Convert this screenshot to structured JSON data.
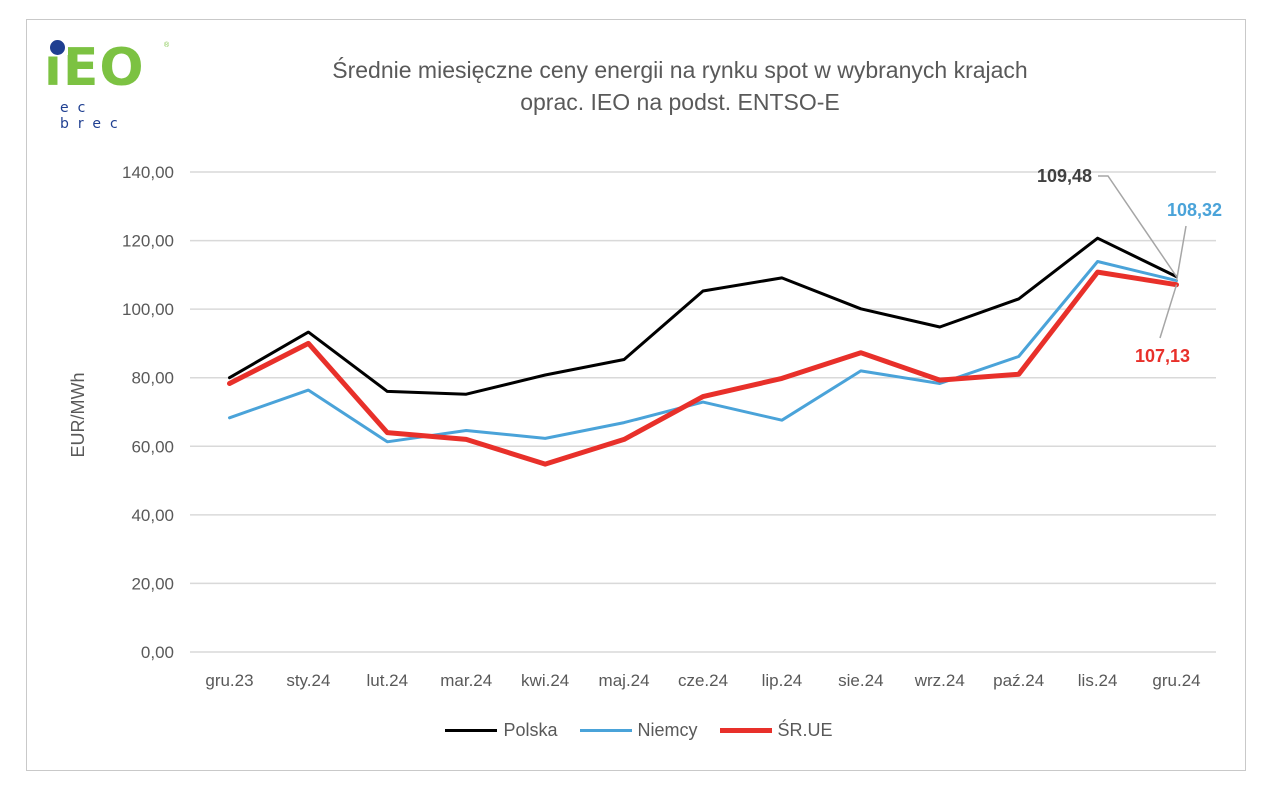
{
  "logo": {
    "main": "iEO",
    "sub": "ec brec",
    "reg": "®"
  },
  "title_line1": "Średnie miesięczne ceny energii na rynku spot w wybranych krajach",
  "title_line2": "oprac. IEO na podst. ENTSO-E",
  "colors": {
    "Polska": "#000000",
    "Niemcy": "#4aa3d9",
    "SR_UE": "#e8302a",
    "grid": "#d9d9d9",
    "text": "#595959"
  },
  "chart_data": {
    "type": "line",
    "title": "Średnie miesięczne ceny energii na rynku spot w wybranych krajach",
    "subtitle": "oprac. IEO na podst. ENTSO-E",
    "xlabel": "",
    "ylabel": "EUR/MWh",
    "ylim": [
      0,
      140
    ],
    "yticks": [
      "0,00",
      "20,00",
      "40,00",
      "60,00",
      "80,00",
      "100,00",
      "120,00",
      "140,00"
    ],
    "grid": true,
    "legend_position": "bottom",
    "categories": [
      "gru.23",
      "sty.24",
      "lut.24",
      "mar.24",
      "kwi.24",
      "maj.24",
      "cze.24",
      "lip.24",
      "sie.24",
      "wrz.24",
      "paź.24",
      "lis.24",
      "gru.24"
    ],
    "series": [
      {
        "name": "Polska",
        "values": [
          80.0,
          93.3,
          76.0,
          75.2,
          80.8,
          85.3,
          105.3,
          109.1,
          100.1,
          94.8,
          103.0,
          120.7,
          109.48
        ]
      },
      {
        "name": "Niemcy",
        "values": [
          68.3,
          76.4,
          61.3,
          64.6,
          62.3,
          66.9,
          72.9,
          67.6,
          82.0,
          78.3,
          86.2,
          113.9,
          108.32
        ]
      },
      {
        "name": "ŚR.UE",
        "values": [
          78.3,
          90.0,
          64.0,
          62.0,
          54.8,
          62.0,
          74.5,
          79.8,
          87.3,
          79.3,
          81.0,
          110.8,
          107.13
        ]
      }
    ],
    "annotations": [
      {
        "series": "Polska",
        "text": "109,48"
      },
      {
        "series": "Niemcy",
        "text": "108,32"
      },
      {
        "series": "ŚR.UE",
        "text": "107,13"
      }
    ]
  }
}
